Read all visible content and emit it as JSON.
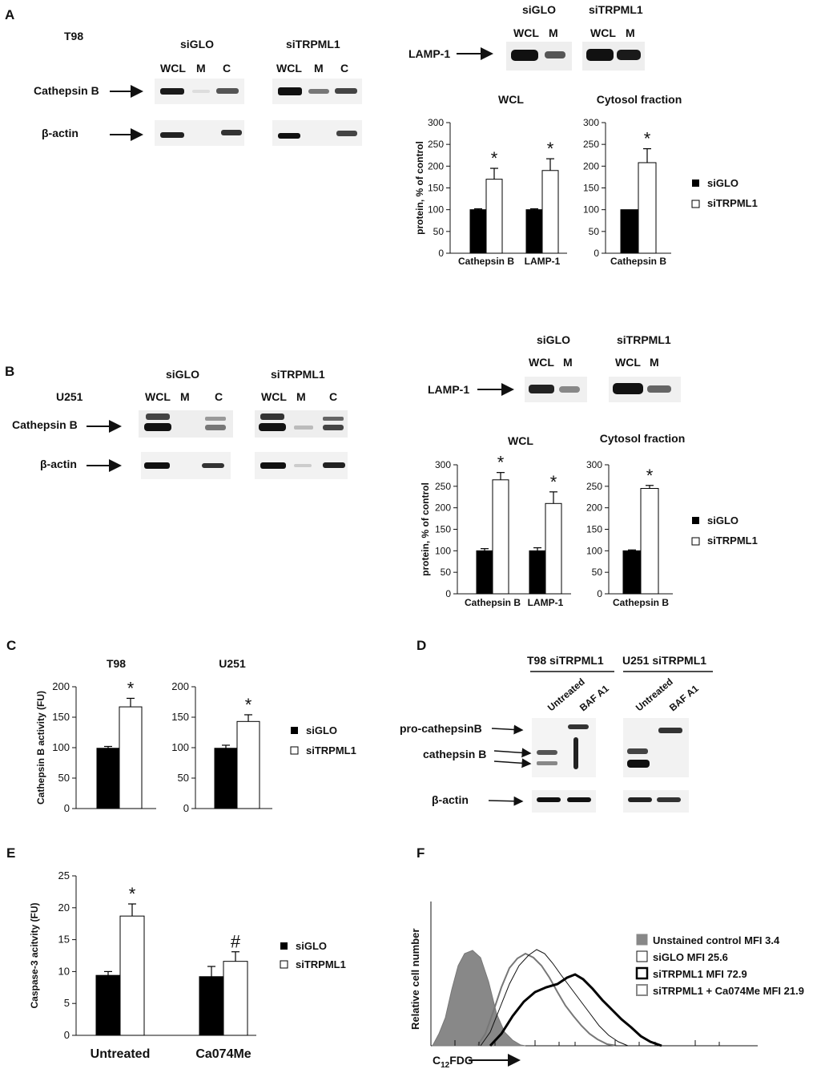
{
  "panels": {
    "A": "A",
    "B": "B",
    "C": "C",
    "D": "D",
    "E": "E",
    "F": "F"
  },
  "blots": {
    "A": {
      "cell_line": "T98",
      "groups": [
        "siGLO",
        "siTRPML1"
      ],
      "lanes": [
        "WCL",
        "M",
        "C"
      ],
      "rows": [
        "Cathepsin B",
        "β-actin"
      ],
      "lamp": {
        "label": "LAMP-1",
        "groups": [
          "siGLO",
          "siTRPML1"
        ],
        "lanes": [
          "WCL",
          "M"
        ]
      }
    },
    "B": {
      "cell_line": "U251",
      "groups": [
        "siGLO",
        "siTRPML1"
      ],
      "lanes": [
        "WCL",
        "M",
        "C"
      ],
      "rows": [
        "Cathepsin B",
        "β-actin"
      ],
      "lamp": {
        "label": "LAMP-1",
        "groups": [
          "siGLO",
          "siTRPML1"
        ],
        "lanes": [
          "WCL",
          "M"
        ]
      }
    },
    "D": {
      "groups": [
        "T98 siTRPML1",
        "U251 siTRPML1"
      ],
      "lanes": [
        "Untreated",
        "BAF A1"
      ],
      "rows": [
        "pro-cathepsinB",
        "cathepsin B",
        "β-actin"
      ]
    }
  },
  "legend": {
    "series": [
      "siGLO",
      "siTRPML1"
    ],
    "colors": {
      "siGLO": "#000000",
      "siTRPML1": "#ffffff"
    }
  },
  "chart_data": [
    {
      "id": "A-WCL",
      "type": "bar",
      "title": "WCL",
      "ylabel": "protein, % of control",
      "ylim": [
        0,
        300
      ],
      "yticks": [
        0,
        50,
        100,
        150,
        200,
        250,
        300
      ],
      "categories": [
        "Cathepsin B",
        "LAMP-1"
      ],
      "series": [
        {
          "name": "siGLO",
          "values": [
            100,
            100
          ],
          "errors": [
            2,
            2
          ]
        },
        {
          "name": "siTRPML1",
          "values": [
            170,
            190
          ],
          "errors": [
            25,
            27
          ]
        }
      ],
      "annotations": [
        "*",
        "*"
      ]
    },
    {
      "id": "A-Cytosol",
      "type": "bar",
      "title": "Cytosol fraction",
      "ylabel": "",
      "ylim": [
        0,
        300
      ],
      "yticks": [
        0,
        50,
        100,
        150,
        200,
        250,
        300
      ],
      "categories": [
        "Cathepsin B"
      ],
      "series": [
        {
          "name": "siGLO",
          "values": [
            100
          ],
          "errors": [
            0
          ]
        },
        {
          "name": "siTRPML1",
          "values": [
            208
          ],
          "errors": [
            32
          ]
        }
      ],
      "annotations": [
        "*"
      ]
    },
    {
      "id": "B-WCL",
      "type": "bar",
      "title": "WCL",
      "ylabel": "protein, % of control",
      "ylim": [
        0,
        300
      ],
      "yticks": [
        0,
        50,
        100,
        150,
        200,
        250,
        300
      ],
      "categories": [
        "Cathepsin B",
        "LAMP-1"
      ],
      "series": [
        {
          "name": "siGLO",
          "values": [
            100,
            100
          ],
          "errors": [
            5,
            7
          ]
        },
        {
          "name": "siTRPML1",
          "values": [
            265,
            210
          ],
          "errors": [
            17,
            27
          ]
        }
      ],
      "annotations": [
        "*",
        "*"
      ]
    },
    {
      "id": "B-Cytosol",
      "type": "bar",
      "title": "Cytosol fraction",
      "ylabel": "",
      "ylim": [
        0,
        300
      ],
      "yticks": [
        0,
        50,
        100,
        150,
        200,
        250,
        300
      ],
      "categories": [
        "Cathepsin B"
      ],
      "series": [
        {
          "name": "siGLO",
          "values": [
            100
          ],
          "errors": [
            2
          ]
        },
        {
          "name": "siTRPML1",
          "values": [
            245
          ],
          "errors": [
            7
          ]
        }
      ],
      "annotations": [
        "*"
      ]
    },
    {
      "id": "C-T98",
      "type": "bar",
      "title": "T98",
      "ylabel": "Cathepsin B activity (FU)",
      "ylim": [
        0,
        200
      ],
      "yticks": [
        0,
        50,
        100,
        150,
        200
      ],
      "categories": [
        ""
      ],
      "series": [
        {
          "name": "siGLO",
          "values": [
            99
          ],
          "errors": [
            3
          ]
        },
        {
          "name": "siTRPML1",
          "values": [
            167
          ],
          "errors": [
            14
          ]
        }
      ],
      "annotations": [
        "*"
      ]
    },
    {
      "id": "C-U251",
      "type": "bar",
      "title": "U251",
      "ylabel": "",
      "ylim": [
        0,
        200
      ],
      "yticks": [
        0,
        50,
        100,
        150,
        200
      ],
      "categories": [
        ""
      ],
      "series": [
        {
          "name": "siGLO",
          "values": [
            99
          ],
          "errors": [
            5
          ]
        },
        {
          "name": "siTRPML1",
          "values": [
            143
          ],
          "errors": [
            11
          ]
        }
      ],
      "annotations": [
        "*"
      ]
    },
    {
      "id": "E",
      "type": "bar",
      "title": "",
      "ylabel": "Caspase-3 acitvity (FU)",
      "ylim": [
        0,
        25
      ],
      "yticks": [
        0,
        5,
        10,
        15,
        20,
        25
      ],
      "categories": [
        "Untreated",
        "Ca074Me"
      ],
      "series": [
        {
          "name": "siGLO",
          "values": [
            9.4,
            9.2
          ],
          "errors": [
            0.6,
            1.6
          ]
        },
        {
          "name": "siTRPML1",
          "values": [
            18.7,
            11.6
          ],
          "errors": [
            1.9,
            1.5
          ]
        }
      ],
      "annotations": [
        "*",
        "#"
      ]
    },
    {
      "id": "F",
      "type": "line",
      "title": "",
      "xlabel_main": "C",
      "xlabel_sub": "12",
      "xlabel_tail": "FDG",
      "ylabel": "Relative cell number",
      "series": [
        {
          "name": "Unstained control MFI 3.4",
          "mfi": 3.4,
          "style": "filled-gray"
        },
        {
          "name": "siGLO MFI 25.6",
          "mfi": 25.6,
          "style": "thin-black"
        },
        {
          "name": "siTRPML1 MFI 72.9",
          "mfi": 72.9,
          "style": "thick-black"
        },
        {
          "name": "siTRPML1 + Ca074Me MFI 21.9",
          "mfi": 21.9,
          "style": "gray"
        }
      ]
    }
  ]
}
